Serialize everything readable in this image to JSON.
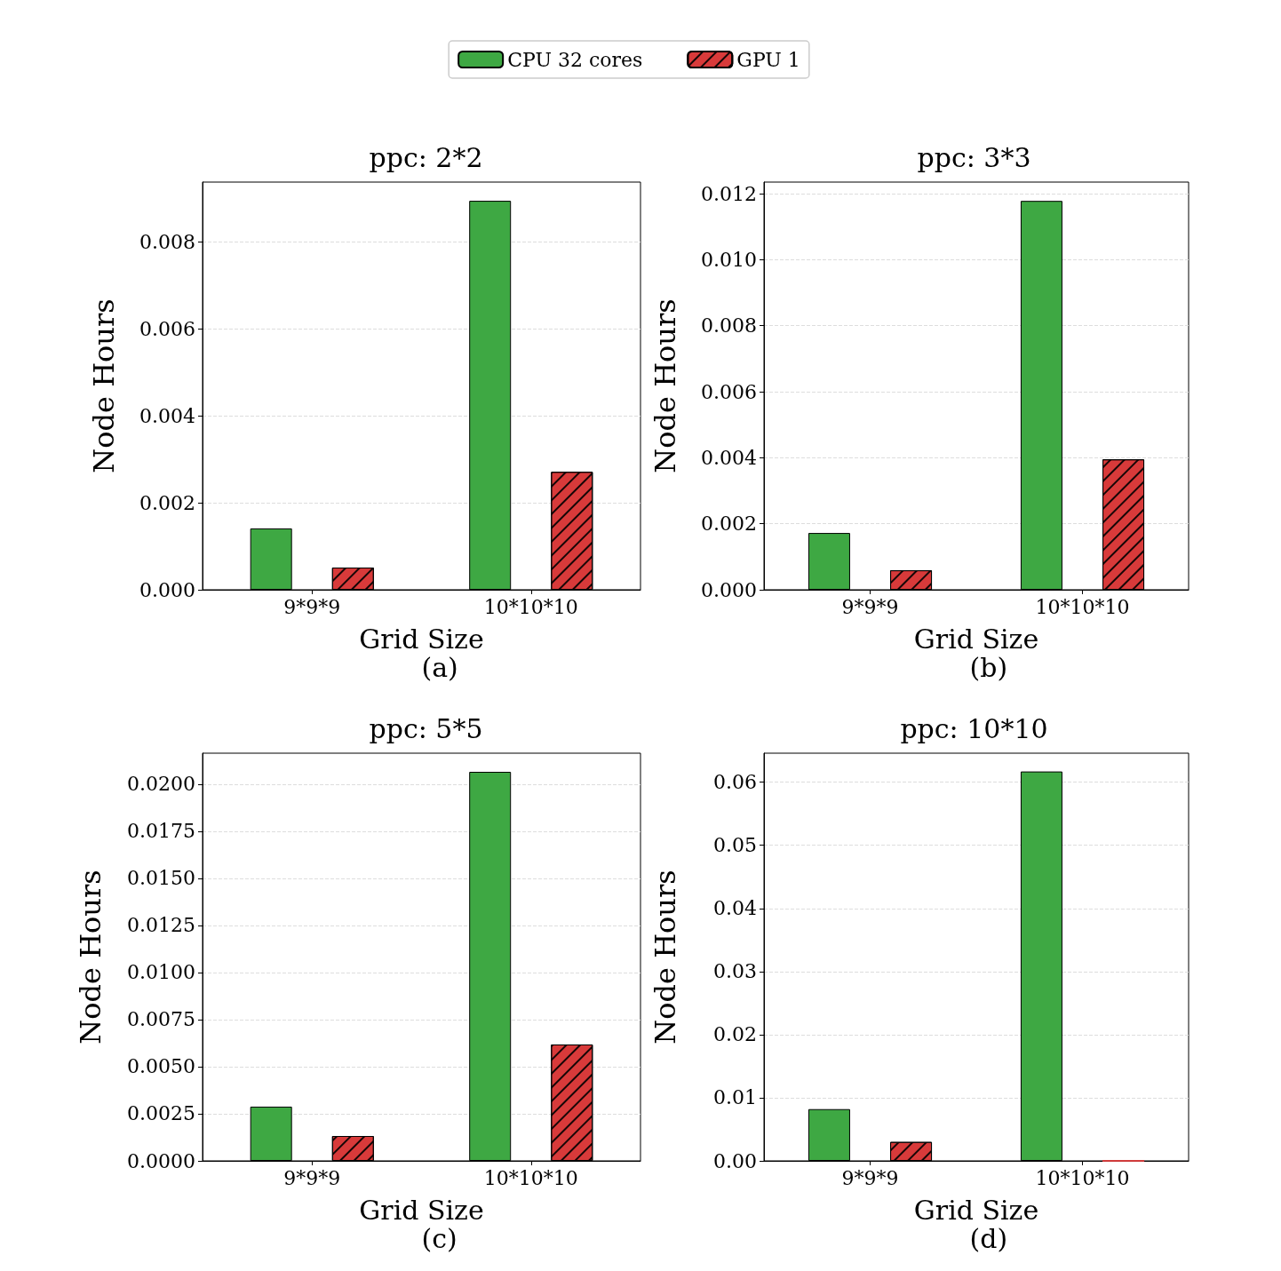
{
  "chart_data": [
    {
      "type": "bar",
      "title": "ppc: 2*2",
      "xlabel": "Grid Size",
      "ylabel": "Node Hours",
      "annotations": [
        "(a)"
      ],
      "categories": [
        "9*9*9",
        "10*10*10"
      ],
      "series": [
        {
          "name": "CPU 32 cores",
          "color": "#3ea843",
          "values": [
            0.00141,
            0.00894
          ]
        },
        {
          "name": "GPU 1",
          "color": "#d83a3a",
          "values": [
            0.00051,
            0.00271
          ]
        }
      ],
      "ylim": [
        0,
        0.00937
      ],
      "yticks": [
        {
          "value": 0,
          "label": "0.000"
        },
        0.002,
        0.004,
        0.006,
        0.008
      ],
      "grid": "y",
      "legend": "top"
    },
    {
      "type": "bar",
      "title": "ppc: 3*3",
      "xlabel": "Grid Size",
      "ylabel": "Node Hours",
      "annotations": [
        "(b)"
      ],
      "categories": [
        "9*9*9",
        "10*10*10"
      ],
      "series": [
        {
          "color": "#3ea843",
          "values": [
            0.00172,
            0.01178
          ]
        },
        {
          "color": "#d83a3a",
          "values": [
            0.00059,
            0.00395
          ]
        }
      ],
      "ylim": [
        0,
        0.01235
      ],
      "yticks": [
        {
          "value": 0,
          "label": "0.000"
        },
        0.002,
        0.004,
        0.006,
        0.008,
        {
          "value": 0.01,
          "label": "0.010"
        },
        0.012
      ],
      "grid": "y"
    },
    {
      "type": "bar",
      "title": "ppc: 5*5",
      "xlabel": "Grid Size",
      "ylabel": "Node Hours",
      "annotations": [
        "(c)"
      ],
      "categories": [
        "9*9*9",
        "10*10*10"
      ],
      "series": [
        {
          "color": "#3ea843",
          "values": [
            0.00288,
            0.02066
          ]
        },
        {
          "color": "#d83a3a",
          "values": [
            0.00132,
            0.00618
          ]
        }
      ],
      "ylim": [
        0,
        0.02165
      ],
      "yticks": [
        {
          "value": 0,
          "label": "0.0000"
        },
        0.0025,
        {
          "value": 0.005,
          "label": "0.0050"
        },
        0.0075,
        {
          "value": 0.01,
          "label": "0.0100"
        },
        0.0125,
        {
          "value": 0.015,
          "label": "0.0150"
        },
        0.0175,
        {
          "value": 0.02,
          "label": "0.0200"
        }
      ],
      "grid": "y"
    },
    {
      "type": "bar",
      "title": "ppc: 10*10",
      "xlabel": "Grid Size",
      "ylabel": "Node Hours",
      "annotations": [
        "(d)"
      ],
      "categories": [
        "9*9*9",
        "10*10*10"
      ],
      "series": [
        {
          "color": "#3ea843",
          "values": [
            0.0082,
            0.0617
          ]
        },
        {
          "color": "#d83a3a",
          "values": [
            0.003,
            0
          ]
        }
      ],
      "ylim": [
        0,
        0.0646
      ],
      "yticks": [
        {
          "value": 0,
          "label": "0.00"
        },
        0.01,
        0.02,
        0.03,
        0.04,
        0.05,
        0.06
      ],
      "grid": "y"
    }
  ]
}
